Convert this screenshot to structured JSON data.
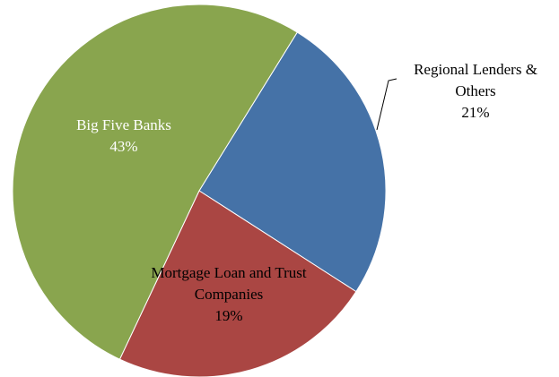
{
  "chart_data": {
    "type": "pie",
    "categories": [
      "Regional Lenders & Others",
      "Mortgage Loan and Trust Companies",
      "Big Five Banks"
    ],
    "values": [
      21,
      19,
      43
    ],
    "value_labels": [
      "21%",
      "19%",
      "43%"
    ],
    "colors": [
      "#4572a7",
      "#aa4643",
      "#89a54e"
    ]
  }
}
